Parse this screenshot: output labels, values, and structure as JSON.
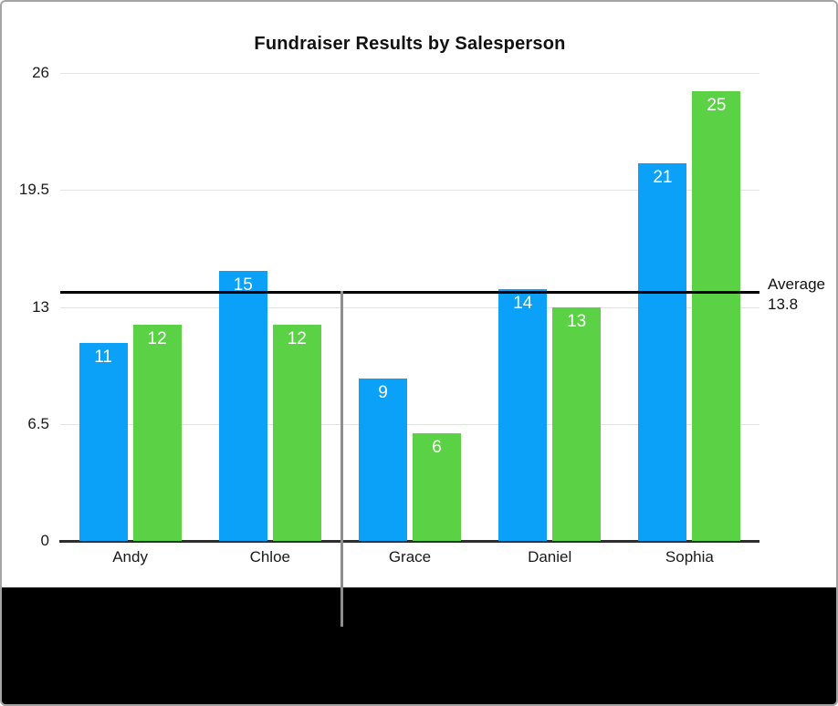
{
  "chart_data": {
    "type": "bar",
    "title": "Fundraiser Results by Salesperson",
    "categories": [
      "Andy",
      "Chloe",
      "Grace",
      "Daniel",
      "Sophia"
    ],
    "series": [
      {
        "color": "#0BA1F8",
        "values": [
          11,
          15,
          9,
          14,
          21
        ]
      },
      {
        "color": "#5BD145",
        "values": [
          12,
          12,
          6,
          13,
          25
        ]
      }
    ],
    "ylim": [
      0,
      26
    ],
    "yticks": [
      0,
      6.5,
      13,
      19.5,
      26
    ],
    "grid": true,
    "legend_position": "none",
    "value_labels_shown": true,
    "average_line": {
      "label": "Average",
      "value_label": "13.8",
      "value": 13.8,
      "color": "#000000"
    }
  },
  "ui": {
    "frame_border_color": "#A5A5A5",
    "gridline_color": "#E3E3E3",
    "axis_line_color": "#2E2E2E",
    "text_color": "#1A1A1A",
    "value_label_color": "#FFFFFF",
    "divider_color": "#8E8E8E",
    "bottom_band_color": "#000000"
  }
}
